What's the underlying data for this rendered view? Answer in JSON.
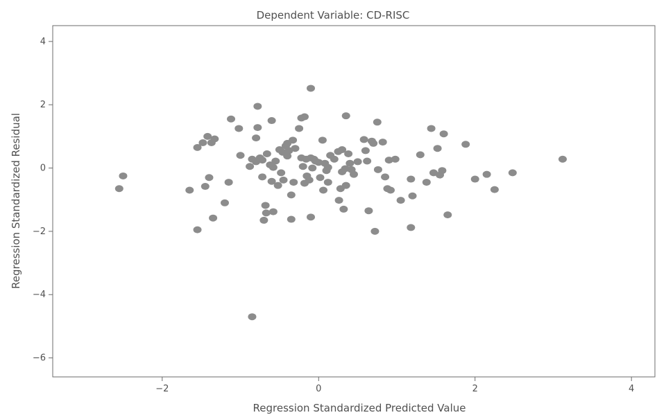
{
  "chart_data": {
    "type": "scatter",
    "title": "Dependent Variable: CD-RISC",
    "xlabel": "Regression Standardized Predicted Value",
    "ylabel": "Regression Standardized Residual",
    "xlim": [
      -3.4,
      4.3
    ],
    "ylim": [
      -6.6,
      4.5
    ],
    "xticks": [
      -2,
      0,
      2,
      4
    ],
    "xtick_labels": [
      "−2",
      "0",
      "2",
      "4"
    ],
    "yticks": [
      4,
      2,
      0,
      -2,
      -4,
      -6
    ],
    "ytick_labels": [
      "4",
      "2",
      "0",
      "−2",
      "−4",
      "−6"
    ],
    "grid": false,
    "point_color": "#8c8c8c",
    "points": [
      {
        "x": -2.55,
        "y": -0.65
      },
      {
        "x": -2.5,
        "y": -0.25
      },
      {
        "x": -1.65,
        "y": -0.7
      },
      {
        "x": -1.55,
        "y": -1.95
      },
      {
        "x": -1.55,
        "y": 0.65
      },
      {
        "x": -1.48,
        "y": 0.8
      },
      {
        "x": -1.45,
        "y": -0.58
      },
      {
        "x": -1.42,
        "y": 1.0
      },
      {
        "x": -1.4,
        "y": -0.3
      },
      {
        "x": -1.37,
        "y": 0.8
      },
      {
        "x": -1.35,
        "y": -1.58
      },
      {
        "x": -1.33,
        "y": 0.92
      },
      {
        "x": -1.2,
        "y": -1.1
      },
      {
        "x": -1.15,
        "y": -0.45
      },
      {
        "x": -1.12,
        "y": 1.55
      },
      {
        "x": -1.02,
        "y": 1.25
      },
      {
        "x": -1.0,
        "y": 0.4
      },
      {
        "x": -0.88,
        "y": 0.05
      },
      {
        "x": -0.85,
        "y": 0.28
      },
      {
        "x": -0.85,
        "y": -4.7
      },
      {
        "x": -0.8,
        "y": 0.2
      },
      {
        "x": -0.8,
        "y": 0.95
      },
      {
        "x": -0.78,
        "y": 1.95
      },
      {
        "x": -0.78,
        "y": 1.28
      },
      {
        "x": -0.75,
        "y": 0.32
      },
      {
        "x": -0.72,
        "y": 0.25
      },
      {
        "x": -0.72,
        "y": -0.28
      },
      {
        "x": -0.7,
        "y": -1.65
      },
      {
        "x": -0.68,
        "y": -1.18
      },
      {
        "x": -0.67,
        "y": -1.42
      },
      {
        "x": -0.66,
        "y": 0.45
      },
      {
        "x": -0.62,
        "y": 0.1
      },
      {
        "x": -0.6,
        "y": 1.5
      },
      {
        "x": -0.6,
        "y": -0.42
      },
      {
        "x": -0.58,
        "y": 0.02
      },
      {
        "x": -0.58,
        "y": -1.38
      },
      {
        "x": -0.55,
        "y": 0.22
      },
      {
        "x": -0.52,
        "y": -0.55
      },
      {
        "x": -0.5,
        "y": 0.58
      },
      {
        "x": -0.48,
        "y": -0.15
      },
      {
        "x": -0.46,
        "y": 0.5
      },
      {
        "x": -0.45,
        "y": -0.38
      },
      {
        "x": -0.42,
        "y": 0.7
      },
      {
        "x": -0.4,
        "y": 0.78
      },
      {
        "x": -0.4,
        "y": 0.38
      },
      {
        "x": -0.38,
        "y": 0.55
      },
      {
        "x": -0.35,
        "y": -0.85
      },
      {
        "x": -0.35,
        "y": -1.62
      },
      {
        "x": -0.33,
        "y": 0.88
      },
      {
        "x": -0.32,
        "y": -0.45
      },
      {
        "x": -0.3,
        "y": 0.62
      },
      {
        "x": -0.25,
        "y": 1.25
      },
      {
        "x": -0.22,
        "y": 1.58
      },
      {
        "x": -0.22,
        "y": 0.32
      },
      {
        "x": -0.2,
        "y": 0.05
      },
      {
        "x": -0.18,
        "y": 1.62
      },
      {
        "x": -0.18,
        "y": -0.48
      },
      {
        "x": -0.16,
        "y": 0.28
      },
      {
        "x": -0.15,
        "y": -0.25
      },
      {
        "x": -0.12,
        "y": -0.38
      },
      {
        "x": -0.1,
        "y": 2.52
      },
      {
        "x": -0.1,
        "y": 0.32
      },
      {
        "x": -0.1,
        "y": -1.55
      },
      {
        "x": -0.08,
        "y": 0.0
      },
      {
        "x": -0.06,
        "y": 0.28
      },
      {
        "x": -0.04,
        "y": 0.22
      },
      {
        "x": 0.0,
        "y": 0.18
      },
      {
        "x": 0.02,
        "y": -0.3
      },
      {
        "x": 0.05,
        "y": 0.88
      },
      {
        "x": 0.06,
        "y": -0.7
      },
      {
        "x": 0.08,
        "y": 0.15
      },
      {
        "x": 0.1,
        "y": -0.08
      },
      {
        "x": 0.12,
        "y": 0.02
      },
      {
        "x": 0.12,
        "y": -0.45
      },
      {
        "x": 0.15,
        "y": 0.4
      },
      {
        "x": 0.2,
        "y": 0.28
      },
      {
        "x": 0.25,
        "y": 0.52
      },
      {
        "x": 0.26,
        "y": -1.02
      },
      {
        "x": 0.28,
        "y": -0.65
      },
      {
        "x": 0.3,
        "y": 0.58
      },
      {
        "x": 0.3,
        "y": -0.12
      },
      {
        "x": 0.32,
        "y": -1.3
      },
      {
        "x": 0.34,
        "y": -0.02
      },
      {
        "x": 0.35,
        "y": 1.65
      },
      {
        "x": 0.35,
        "y": -0.55
      },
      {
        "x": 0.38,
        "y": 0.45
      },
      {
        "x": 0.4,
        "y": 0.15
      },
      {
        "x": 0.42,
        "y": -0.05
      },
      {
        "x": 0.45,
        "y": -0.2
      },
      {
        "x": 0.5,
        "y": 0.2
      },
      {
        "x": 0.58,
        "y": 0.9
      },
      {
        "x": 0.6,
        "y": 0.55
      },
      {
        "x": 0.62,
        "y": 0.22
      },
      {
        "x": 0.64,
        "y": -1.35
      },
      {
        "x": 0.68,
        "y": 0.85
      },
      {
        "x": 0.7,
        "y": 0.78
      },
      {
        "x": 0.72,
        "y": -2.0
      },
      {
        "x": 0.75,
        "y": 1.45
      },
      {
        "x": 0.76,
        "y": -0.05
      },
      {
        "x": 0.82,
        "y": 0.82
      },
      {
        "x": 0.85,
        "y": -0.28
      },
      {
        "x": 0.88,
        "y": -0.65
      },
      {
        "x": 0.9,
        "y": 0.25
      },
      {
        "x": 0.92,
        "y": -0.7
      },
      {
        "x": 0.98,
        "y": 0.28
      },
      {
        "x": 1.05,
        "y": -1.02
      },
      {
        "x": 1.18,
        "y": -0.35
      },
      {
        "x": 1.18,
        "y": -1.88
      },
      {
        "x": 1.2,
        "y": -0.88
      },
      {
        "x": 1.3,
        "y": 0.42
      },
      {
        "x": 1.38,
        "y": -0.45
      },
      {
        "x": 1.44,
        "y": 1.25
      },
      {
        "x": 1.47,
        "y": -0.15
      },
      {
        "x": 1.52,
        "y": 0.62
      },
      {
        "x": 1.55,
        "y": -0.22
      },
      {
        "x": 1.58,
        "y": -0.08
      },
      {
        "x": 1.6,
        "y": 1.08
      },
      {
        "x": 1.65,
        "y": -1.48
      },
      {
        "x": 1.88,
        "y": 0.75
      },
      {
        "x": 2.0,
        "y": -0.35
      },
      {
        "x": 2.15,
        "y": -0.2
      },
      {
        "x": 2.25,
        "y": -0.68
      },
      {
        "x": 2.48,
        "y": -0.15
      },
      {
        "x": 3.12,
        "y": 0.28
      }
    ]
  }
}
